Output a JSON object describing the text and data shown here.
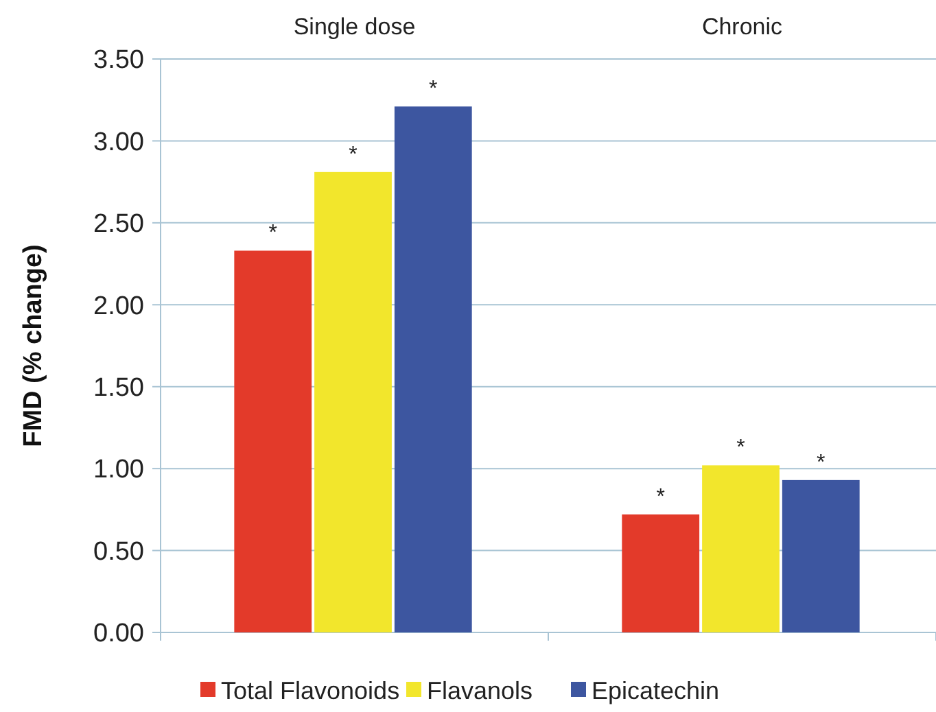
{
  "chart_data": {
    "type": "bar",
    "ylabel": "FMD (% change)",
    "categories": [
      "Single dose",
      "Chronic"
    ],
    "series": [
      {
        "name": "Total Flavonoids",
        "color": "#e33a2a",
        "values": [
          2.33,
          0.72
        ],
        "value_labels": [
          "*",
          "*"
        ]
      },
      {
        "name": "Flavanols",
        "color": "#f2e62c",
        "values": [
          2.81,
          1.02
        ],
        "value_labels": [
          "*",
          "*"
        ]
      },
      {
        "name": "Epicatechin",
        "color": "#3d56a0",
        "values": [
          3.21,
          0.93
        ],
        "value_labels": [
          "*",
          "*"
        ]
      }
    ],
    "ylim": [
      0,
      3.5
    ],
    "yticks": [
      {
        "value": 0,
        "label": "0.00"
      },
      {
        "value": 0.5,
        "label": "0.50"
      },
      {
        "value": 1,
        "label": "1.00"
      },
      {
        "value": 1.5,
        "label": "1.50"
      },
      {
        "value": 2,
        "label": "2.00"
      },
      {
        "value": 2.5,
        "label": "2.50"
      },
      {
        "value": 3,
        "label": "3.00"
      },
      {
        "value": 3.5,
        "label": "3.50"
      }
    ],
    "grid": "y",
    "legend": "bottom"
  }
}
